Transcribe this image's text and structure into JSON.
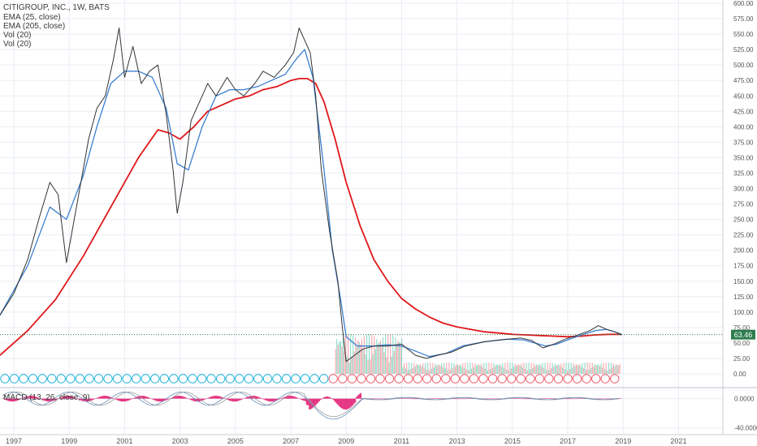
{
  "header": {
    "symbol_line": "CITIGROUP, INC., 1W, BATS",
    "indicators": [
      "EMA (25, close)",
      "EMA (205, close)",
      "Vol (20)",
      "Vol (20)"
    ]
  },
  "macd_legend": "MACD (13, 26, close, 9)",
  "colors": {
    "price": "#333333",
    "ema_fast": "#3b7fd0",
    "ema_slow": "#e0171a",
    "volume_up": "#3cc3a0",
    "volume_down": "#f26b75",
    "macd_hist": "#e0136d",
    "dividend": "#22b3d9",
    "earnings": "#f05a6a",
    "last_price_bg": "#2e7d4e",
    "axis_text": "#555555",
    "grid": "#e9eef4"
  },
  "chart_data": {
    "type": "line",
    "title": "CITIGROUP, INC., 1W, BATS",
    "ylim": [
      0,
      600
    ],
    "y_ticks": [
      "600.00",
      "575.00",
      "550.00",
      "525.00",
      "500.00",
      "475.00",
      "450.00",
      "425.00",
      "400.00",
      "375.00",
      "350.00",
      "325.00",
      "300.00",
      "275.00",
      "250.00",
      "225.00",
      "200.00",
      "175.00",
      "150.00",
      "125.00",
      "100.00",
      "75.00",
      "50.00",
      "25.00",
      "0.00"
    ],
    "y_tick_values": [
      600,
      575,
      550,
      525,
      500,
      475,
      450,
      425,
      400,
      375,
      350,
      325,
      300,
      275,
      250,
      225,
      200,
      175,
      150,
      125,
      100,
      75,
      50,
      25,
      0
    ],
    "x_ticks": [
      "1997",
      "1999",
      "2001",
      "2003",
      "2005",
      "2007",
      "2009",
      "2011",
      "2013",
      "2015",
      "2017",
      "2019",
      "2021"
    ],
    "x_tick_values": [
      1997,
      1999,
      2001,
      2003,
      2005,
      2007,
      2009,
      2011,
      2013,
      2015,
      2017,
      2019,
      2021
    ],
    "xlim": [
      1996.5,
      2022.6
    ],
    "last_price_label": "63.46",
    "last_price": 63.46,
    "series": [
      {
        "name": "CITIGROUP, INC., 1W, BATS",
        "x": [
          1996.5,
          1997.0,
          1997.5,
          1997.9,
          1998.3,
          1998.6,
          1998.9,
          1999.3,
          1999.7,
          2000.0,
          2000.3,
          2000.6,
          2000.8,
          2001.0,
          2001.3,
          2001.6,
          2001.9,
          2002.2,
          2002.5,
          2002.75,
          2002.9,
          2003.1,
          2003.4,
          2003.7,
          2004.0,
          2004.3,
          2004.7,
          2005.0,
          2005.3,
          2005.7,
          2006.0,
          2006.4,
          2006.8,
          2007.1,
          2007.3,
          2007.5,
          2007.7,
          2007.9,
          2008.1,
          2008.4,
          2008.7,
          2008.85,
          2009.0,
          2009.3,
          2009.6,
          2010.0,
          2010.5,
          2011.0,
          2011.5,
          2011.9,
          2012.3,
          2012.8,
          2013.3,
          2014.0,
          2014.6,
          2015.3,
          2015.7,
          2016.1,
          2016.5,
          2016.9,
          2017.3,
          2017.8,
          2018.1,
          2018.4,
          2018.7,
          2018.95
        ],
        "values": [
          95,
          130,
          185,
          250,
          310,
          290,
          180,
          280,
          380,
          430,
          450,
          510,
          560,
          480,
          530,
          470,
          490,
          500,
          420,
          330,
          260,
          310,
          410,
          440,
          470,
          450,
          480,
          460,
          450,
          470,
          490,
          480,
          500,
          520,
          560,
          540,
          520,
          450,
          330,
          230,
          150,
          80,
          20,
          30,
          40,
          45,
          45,
          48,
          30,
          25,
          30,
          35,
          45,
          52,
          55,
          58,
          54,
          42,
          48,
          56,
          62,
          70,
          78,
          72,
          68,
          63
        ]
      },
      {
        "name": "EMA (25, close)",
        "x": [
          1996.5,
          1997.5,
          1998.3,
          1998.9,
          1999.5,
          2000.0,
          2000.5,
          2001.0,
          2001.5,
          2002.0,
          2002.5,
          2002.9,
          2003.3,
          2003.8,
          2004.3,
          2004.8,
          2005.3,
          2005.8,
          2006.3,
          2006.8,
          2007.2,
          2007.5,
          2007.8,
          2008.2,
          2008.5,
          2008.8,
          2009.0,
          2009.4,
          2010.0,
          2010.5,
          2011.0,
          2011.6,
          2012.0,
          2012.6,
          2013.2,
          2014.0,
          2014.8,
          2015.4,
          2015.8,
          2016.2,
          2016.6,
          2017.0,
          2017.5,
          2018.0,
          2018.4,
          2018.7,
          2018.95
        ],
        "values": [
          95,
          175,
          270,
          250,
          320,
          400,
          470,
          490,
          490,
          480,
          430,
          340,
          330,
          400,
          450,
          460,
          460,
          465,
          475,
          485,
          510,
          525,
          480,
          330,
          200,
          120,
          60,
          45,
          45,
          47,
          45,
          35,
          28,
          33,
          45,
          52,
          56,
          55,
          50,
          45,
          48,
          55,
          63,
          70,
          72,
          68,
          64
        ]
      },
      {
        "name": "EMA (205, close)",
        "x": [
          1996.5,
          1997.5,
          1998.5,
          1999.5,
          2000.5,
          2001.5,
          2002.2,
          2002.6,
          2003.0,
          2003.5,
          2004.0,
          2004.5,
          2005.0,
          2005.5,
          2006.0,
          2006.5,
          2007.0,
          2007.3,
          2007.6,
          2007.9,
          2008.2,
          2008.6,
          2009.0,
          2009.5,
          2010.0,
          2010.5,
          2011.0,
          2011.5,
          2012.0,
          2012.5,
          2013.0,
          2013.5,
          2014.0,
          2014.5,
          2015.0,
          2015.5,
          2016.0,
          2016.5,
          2017.0,
          2017.5,
          2018.0,
          2018.5,
          2018.95
        ],
        "values": [
          30,
          70,
          120,
          190,
          270,
          350,
          395,
          390,
          380,
          400,
          425,
          435,
          445,
          450,
          460,
          465,
          475,
          478,
          478,
          470,
          440,
          380,
          310,
          240,
          185,
          150,
          122,
          105,
          92,
          82,
          76,
          72,
          68,
          66,
          64,
          63,
          62,
          61,
          60,
          61,
          63,
          64,
          64
        ]
      }
    ]
  },
  "macd": {
    "ticks": [
      "0.0000",
      "-40.0000"
    ],
    "tick_values": [
      0,
      -40
    ],
    "ylim": [
      -46,
      14
    ]
  }
}
